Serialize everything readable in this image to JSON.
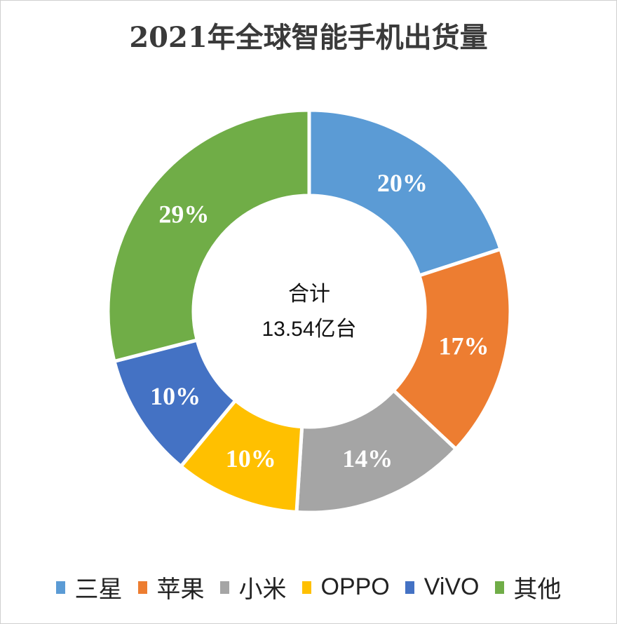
{
  "chart_data": {
    "type": "pie",
    "variant": "donut",
    "title": "2021年全球智能手机出货量",
    "center_text": [
      "合计",
      "13.54亿台"
    ],
    "categories": [
      "三星",
      "苹果",
      "小米",
      "OPPO",
      "ViVO",
      "其他"
    ],
    "values": [
      20,
      17,
      14,
      10,
      10,
      29
    ],
    "data_labels": [
      "20%",
      "17%",
      "14%",
      "10%",
      "10%",
      "29%"
    ],
    "colors": [
      "#5B9BD5",
      "#ED7D31",
      "#A5A5A5",
      "#FFC000",
      "#4472C4",
      "#70AD47"
    ],
    "legend_position": "bottom"
  }
}
